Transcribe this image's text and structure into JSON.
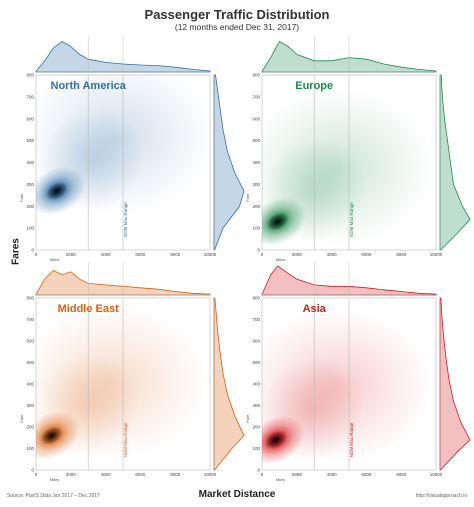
{
  "header": {
    "title": "Passenger Traffic Distribution",
    "subtitle": "(12 months ended Dec 31, 2017)"
  },
  "axes": {
    "y_label": "Fares",
    "x_label": "Market Distance"
  },
  "footer": {
    "source": "Source: PaxIS Data Jan 2017 – Dec 2017",
    "link": "http://visualapproach.io"
  },
  "chart_data": [
    {
      "type": "heatmap",
      "title": "North America",
      "color": "#2f6fa8",
      "xlabel": "Miles",
      "ylabel": "Fare",
      "xlim": [
        0,
        10000
      ],
      "ylim": [
        0,
        800
      ],
      "x_ticks": [
        0,
        2000,
        4000,
        6000,
        8000,
        10000
      ],
      "y_ticks": [
        0,
        100,
        200,
        300,
        400,
        500,
        600,
        700,
        800
      ],
      "reference_lines": [
        3000,
        5000
      ],
      "annotation": "NDM Max Range",
      "density_peak": {
        "x": 1200,
        "y": 270
      },
      "x_marginal": [
        [
          0,
          0.02
        ],
        [
          500,
          0.35
        ],
        [
          1000,
          0.75
        ],
        [
          1500,
          0.95
        ],
        [
          2000,
          0.8
        ],
        [
          2500,
          0.55
        ],
        [
          3000,
          0.4
        ],
        [
          3500,
          0.35
        ],
        [
          4000,
          0.3
        ],
        [
          5000,
          0.25
        ],
        [
          6000,
          0.22
        ],
        [
          7000,
          0.2
        ],
        [
          8000,
          0.15
        ],
        [
          9000,
          0.08
        ],
        [
          10000,
          0.03
        ]
      ],
      "y_marginal": [
        [
          0,
          0.02
        ],
        [
          100,
          0.3
        ],
        [
          200,
          0.85
        ],
        [
          270,
          1.0
        ],
        [
          350,
          0.7
        ],
        [
          450,
          0.45
        ],
        [
          550,
          0.3
        ],
        [
          650,
          0.2
        ],
        [
          750,
          0.1
        ],
        [
          800,
          0.05
        ]
      ]
    },
    {
      "type": "heatmap",
      "title": "Europe",
      "color": "#1e8a4a",
      "xlabel": "Miles",
      "ylabel": "Fare",
      "xlim": [
        0,
        10000
      ],
      "ylim": [
        0,
        800
      ],
      "x_ticks": [
        0,
        2000,
        4000,
        6000,
        8000,
        10000
      ],
      "y_ticks": [
        0,
        100,
        200,
        300,
        400,
        500,
        600,
        700,
        800
      ],
      "reference_lines": [
        3000,
        5000
      ],
      "annotation": "NDM Max Range",
      "density_peak": {
        "x": 900,
        "y": 130
      },
      "x_marginal": [
        [
          0,
          0.02
        ],
        [
          500,
          0.45
        ],
        [
          1000,
          0.95
        ],
        [
          1500,
          0.8
        ],
        [
          2000,
          0.55
        ],
        [
          3000,
          0.35
        ],
        [
          4000,
          0.35
        ],
        [
          5000,
          0.45
        ],
        [
          6000,
          0.4
        ],
        [
          7000,
          0.25
        ],
        [
          8000,
          0.15
        ],
        [
          9000,
          0.08
        ],
        [
          10000,
          0.03
        ]
      ],
      "y_marginal": [
        [
          0,
          0.02
        ],
        [
          80,
          0.6
        ],
        [
          140,
          1.0
        ],
        [
          200,
          0.75
        ],
        [
          300,
          0.45
        ],
        [
          400,
          0.35
        ],
        [
          500,
          0.25
        ],
        [
          600,
          0.15
        ],
        [
          700,
          0.08
        ],
        [
          800,
          0.04
        ]
      ]
    },
    {
      "type": "heatmap",
      "title": "Middle East",
      "color": "#d95f0e",
      "xlabel": "Miles",
      "ylabel": "Fare",
      "xlim": [
        0,
        10000
      ],
      "ylim": [
        0,
        800
      ],
      "x_ticks": [
        0,
        2000,
        4000,
        6000,
        8000,
        10000
      ],
      "y_ticks": [
        0,
        100,
        200,
        300,
        400,
        500,
        600,
        700,
        800
      ],
      "reference_lines": [
        3000,
        5000
      ],
      "annotation": "NDM Max Range",
      "density_peak": {
        "x": 900,
        "y": 160
      },
      "x_marginal": [
        [
          0,
          0.02
        ],
        [
          500,
          0.55
        ],
        [
          1000,
          0.85
        ],
        [
          1500,
          0.7
        ],
        [
          2000,
          0.8
        ],
        [
          2500,
          0.55
        ],
        [
          3000,
          0.4
        ],
        [
          4000,
          0.35
        ],
        [
          5000,
          0.3
        ],
        [
          6000,
          0.25
        ],
        [
          7000,
          0.2
        ],
        [
          8000,
          0.12
        ],
        [
          9000,
          0.06
        ],
        [
          10000,
          0.03
        ]
      ],
      "y_marginal": [
        [
          0,
          0.02
        ],
        [
          100,
          0.6
        ],
        [
          160,
          1.0
        ],
        [
          250,
          0.7
        ],
        [
          350,
          0.45
        ],
        [
          450,
          0.3
        ],
        [
          550,
          0.2
        ],
        [
          650,
          0.12
        ],
        [
          750,
          0.06
        ],
        [
          800,
          0.03
        ]
      ]
    },
    {
      "type": "heatmap",
      "title": "Asia",
      "color": "#d7191c",
      "xlabel": "Miles",
      "ylabel": "Fare",
      "xlim": [
        0,
        10000
      ],
      "ylim": [
        0,
        800
      ],
      "x_ticks": [
        0,
        2000,
        4000,
        6000,
        8000,
        10000
      ],
      "y_ticks": [
        0,
        100,
        200,
        300,
        400,
        500,
        600,
        700,
        800
      ],
      "reference_lines": [
        3000,
        5000
      ],
      "annotation": "NDM Max Range",
      "density_peak": {
        "x": 800,
        "y": 140
      },
      "x_marginal": [
        [
          0,
          0.02
        ],
        [
          500,
          0.7
        ],
        [
          900,
          1.0
        ],
        [
          1500,
          0.75
        ],
        [
          2000,
          0.55
        ],
        [
          3000,
          0.35
        ],
        [
          4000,
          0.3
        ],
        [
          5000,
          0.3
        ],
        [
          6000,
          0.25
        ],
        [
          7000,
          0.18
        ],
        [
          8000,
          0.12
        ],
        [
          9000,
          0.06
        ],
        [
          10000,
          0.03
        ]
      ],
      "y_marginal": [
        [
          0,
          0.02
        ],
        [
          80,
          0.55
        ],
        [
          140,
          1.0
        ],
        [
          220,
          0.7
        ],
        [
          320,
          0.45
        ],
        [
          420,
          0.3
        ],
        [
          520,
          0.2
        ],
        [
          620,
          0.12
        ],
        [
          720,
          0.06
        ],
        [
          800,
          0.03
        ]
      ]
    }
  ]
}
